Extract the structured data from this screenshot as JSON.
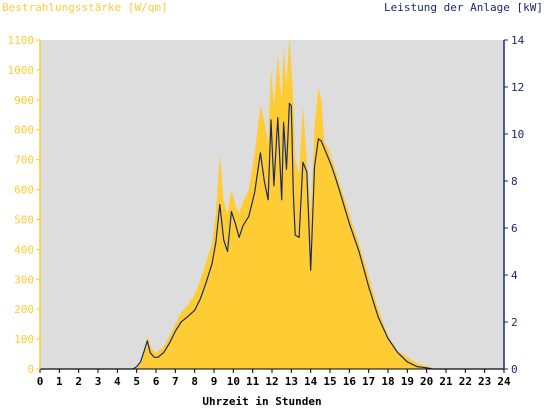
{
  "chart_data": {
    "type": "area",
    "ylabel_left": "Bestrahlungsstärke [W/qm]",
    "ylabel_right": "Leistung der Anlage [kW]",
    "xlabel": "Uhrzeit in Stunden",
    "xlim": [
      0,
      24
    ],
    "ylim_left": [
      0,
      1100
    ],
    "ylim_right": [
      0,
      14
    ],
    "x_ticks": [
      "0",
      "1",
      "2",
      "3",
      "4",
      "5",
      "6",
      "7",
      "8",
      "9",
      "10",
      "11",
      "12",
      "13",
      "14",
      "15",
      "16",
      "17",
      "18",
      "19",
      "20",
      "21",
      "22",
      "23",
      "24"
    ],
    "y_ticks_left": [
      "0",
      "100",
      "200",
      "300",
      "400",
      "500",
      "600",
      "700",
      "800",
      "900",
      "1000",
      "1100"
    ],
    "y_ticks_right": [
      "0",
      "2",
      "4",
      "6",
      "8",
      "10",
      "12",
      "14"
    ],
    "colors": {
      "plot_bg": "#dddddd",
      "irradiance_fill": "#ffcc33",
      "power_line": "#1a2a6c",
      "left_axis_text": "#ffcc33",
      "right_axis_text": "#1a2a6c",
      "axis_text": "#000000"
    },
    "series": [
      {
        "name": "Bestrahlungsstärke [W/qm]",
        "kind": "area",
        "axis": "left",
        "x": [
          0,
          4.8,
          5.0,
          5.2,
          5.4,
          5.55,
          5.7,
          5.9,
          6.1,
          6.4,
          6.7,
          7.0,
          7.3,
          7.6,
          8.0,
          8.3,
          8.6,
          8.9,
          9.1,
          9.3,
          9.5,
          9.7,
          9.9,
          10.1,
          10.3,
          10.5,
          10.8,
          11.1,
          11.4,
          11.6,
          11.8,
          11.95,
          12.1,
          12.3,
          12.5,
          12.6,
          12.75,
          12.9,
          13.0,
          13.1,
          13.2,
          13.4,
          13.6,
          13.8,
          14.0,
          14.2,
          14.4,
          14.55,
          14.7,
          14.9,
          15.1,
          15.3,
          15.6,
          16.0,
          16.5,
          17.0,
          17.5,
          18.0,
          18.5,
          19.0,
          19.5,
          20.0,
          20.3,
          20.5,
          24
        ],
        "y": [
          0,
          0,
          5,
          20,
          60,
          110,
          80,
          55,
          60,
          75,
          110,
          150,
          190,
          210,
          250,
          300,
          360,
          420,
          520,
          720,
          560,
          520,
          600,
          550,
          520,
          560,
          600,
          720,
          880,
          830,
          750,
          1000,
          880,
          1050,
          900,
          1080,
          950,
          1110,
          1010,
          900,
          700,
          650,
          880,
          700,
          520,
          810,
          940,
          900,
          760,
          740,
          700,
          660,
          600,
          520,
          420,
          310,
          200,
          110,
          60,
          40,
          20,
          10,
          5,
          0,
          0
        ]
      },
      {
        "name": "Leistung der Anlage [kW]",
        "kind": "line",
        "axis": "right",
        "x": [
          0,
          4.8,
          5.0,
          5.2,
          5.4,
          5.55,
          5.7,
          5.9,
          6.1,
          6.4,
          6.7,
          7.0,
          7.3,
          7.6,
          8.0,
          8.3,
          8.6,
          8.9,
          9.1,
          9.3,
          9.5,
          9.7,
          9.9,
          10.1,
          10.3,
          10.5,
          10.8,
          11.1,
          11.4,
          11.6,
          11.8,
          11.95,
          12.1,
          12.3,
          12.5,
          12.6,
          12.75,
          12.9,
          13.0,
          13.1,
          13.2,
          13.4,
          13.6,
          13.8,
          14.0,
          14.2,
          14.4,
          14.55,
          14.7,
          14.9,
          15.1,
          15.3,
          15.6,
          16.0,
          16.5,
          17.0,
          17.5,
          18.0,
          18.5,
          19.0,
          19.5,
          20.0,
          20.3,
          20.5,
          24
        ],
        "y": [
          0,
          0,
          0.1,
          0.3,
          0.8,
          1.2,
          0.7,
          0.5,
          0.5,
          0.7,
          1.1,
          1.6,
          2.0,
          2.2,
          2.5,
          3.0,
          3.7,
          4.5,
          5.4,
          7.0,
          5.5,
          5.0,
          6.7,
          6.2,
          5.6,
          6.1,
          6.5,
          7.5,
          9.2,
          8.0,
          7.2,
          10.6,
          7.8,
          10.7,
          7.2,
          10.5,
          8.5,
          11.3,
          11.2,
          7.5,
          5.7,
          5.6,
          8.8,
          8.4,
          4.2,
          8.6,
          9.8,
          9.7,
          9.4,
          9.0,
          8.6,
          8.1,
          7.3,
          6.2,
          5.0,
          3.5,
          2.2,
          1.3,
          0.7,
          0.3,
          0.1,
          0.05,
          0,
          0,
          0
        ]
      }
    ]
  }
}
